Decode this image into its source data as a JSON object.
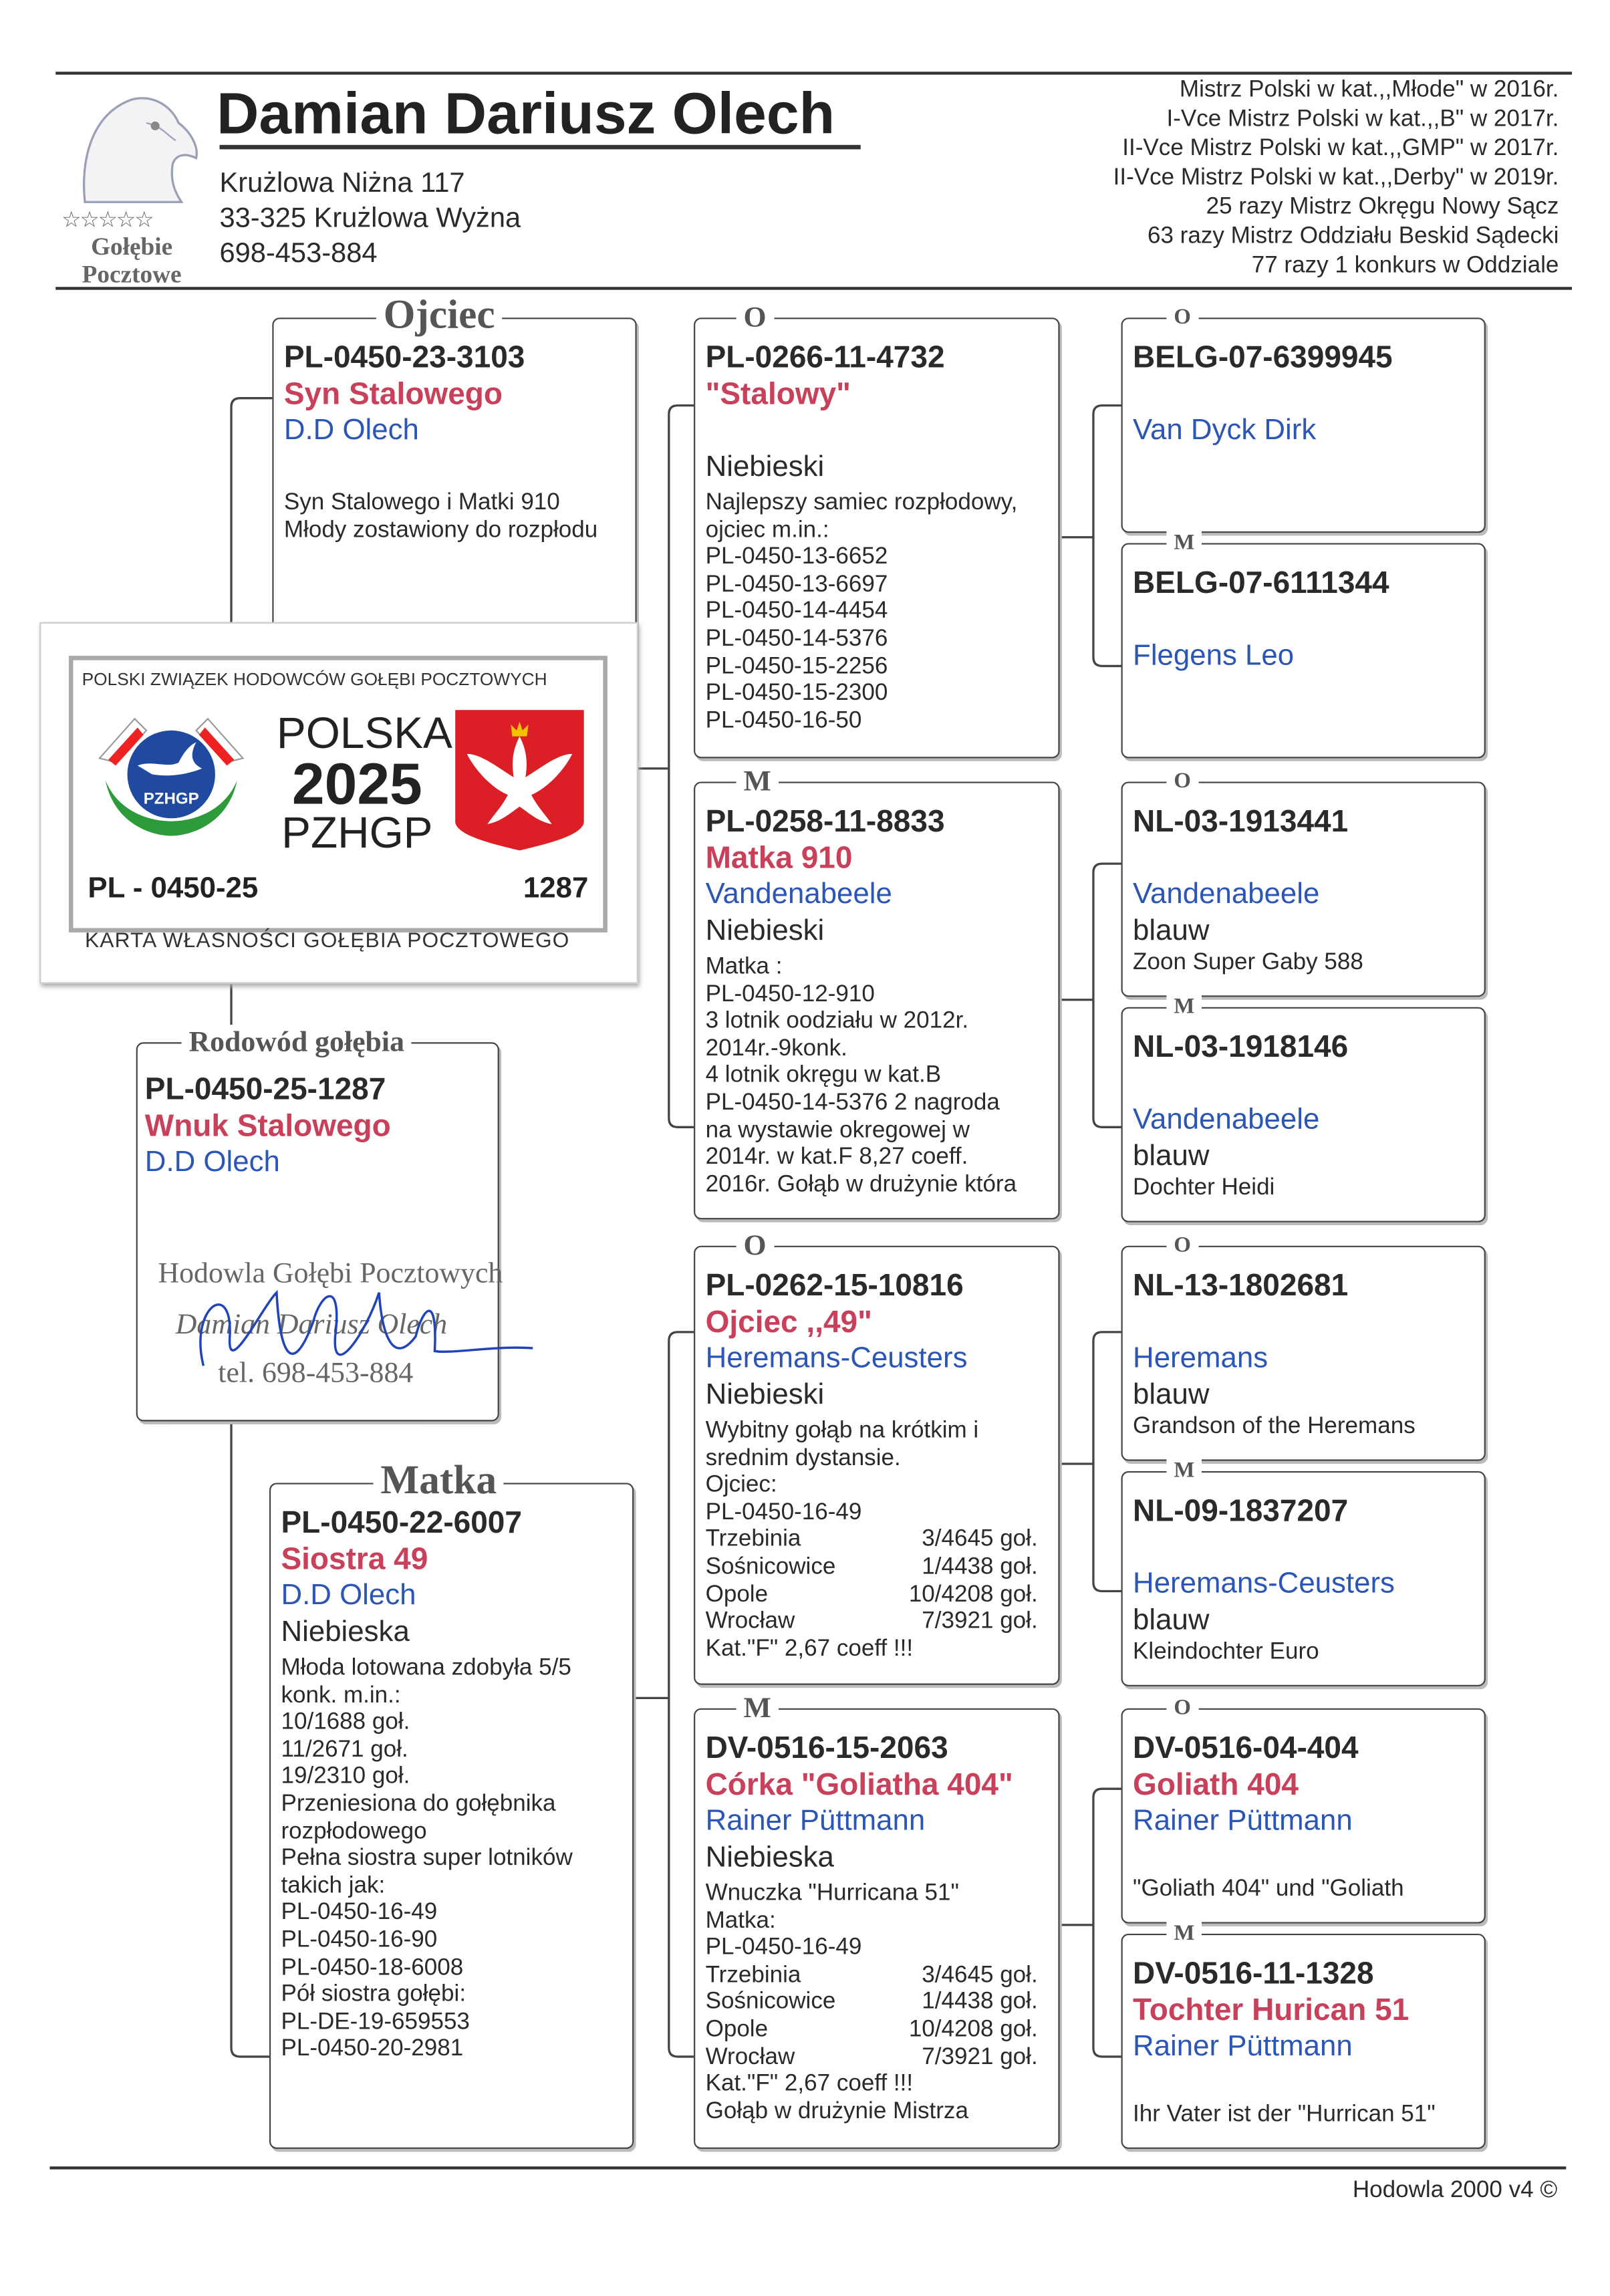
{
  "header": {
    "logo_text": [
      "Gołębie",
      "Pocztowe"
    ],
    "breeder_name": "Damian Dariusz Olech",
    "address_lines": [
      "Krużlowa Niżna 117",
      "33-325 Krużlowa Wyżna",
      "698-453-884"
    ],
    "achievements": [
      "Mistrz Polski w kat.,,Młode\" w 2016r.",
      "I-Vce Mistrz Polski w kat.,,B\" w 2017r.",
      "II-Vce Mistrz Polski w kat.,,GMP\" w 2017r.",
      "II-Vce Mistrz Polski w kat.,,Derby\" w 2019r.",
      "25 razy Mistrz Okręgu Nowy Sącz",
      "63 razy Mistrz Oddziału Beskid Sądecki",
      "77 razy 1 konkurs w Oddziale"
    ]
  },
  "card": {
    "org": "POLSKI ZWIĄZEK HODOWCÓW GOŁĘBI POCZTOWYCH",
    "logo_text": "PZHGP",
    "line1": "POLSKA",
    "year": "2025",
    "line3": "PZHGP",
    "ring_prefix": "PL - 0450-25",
    "ring_number": "1287",
    "footer": "KARTA  WŁASNOŚCI GOŁĘBIA POCZTOWEGO"
  },
  "pedigree": {
    "subject": {
      "label": "Rodowód gołębia",
      "ring": "PL-0450-25-1287",
      "name": "Wnuk Stalowego",
      "breeder": "D.D Olech",
      "stamp": [
        "Hodowla Gołębi Pocztowych",
        "Damian Dariusz Olech",
        "tel. 698-453-884"
      ]
    },
    "father": {
      "label": "Ojciec",
      "ring": "PL-0450-23-3103",
      "name": "Syn Stalowego",
      "breeder": "D.D Olech",
      "color": "",
      "notes": [
        "Syn Stalowego i Matki 910",
        "Młody zostawiony do rozpłodu"
      ]
    },
    "mother": {
      "label": "Matka",
      "ring": "PL-0450-22-6007",
      "name": "Siostra 49",
      "breeder": "D.D Olech",
      "color": "Niebieska",
      "notes": [
        "Młoda lotowana zdobyła 5/5",
        "konk. m.in.:",
        "10/1688 goł.",
        "11/2671 goł.",
        "19/2310 goł.",
        "Przeniesiona do gołębnika",
        "rozpłodowego",
        "Pełna siostra super lotników",
        "takich jak:",
        "PL-0450-16-49",
        "PL-0450-16-90",
        "PL-0450-18-6008",
        "Pół siostra gołębi:",
        "PL-DE-19-659553",
        "PL-0450-20-2981"
      ]
    },
    "gen2": [
      {
        "label": "O",
        "ring": "PL-0266-11-4732",
        "name": "\"Stalowy\"",
        "breeder": "",
        "color": "Niebieski",
        "notes": [
          "Najlepszy samiec rozpłodowy,",
          "ojciec m.in.:",
          "PL-0450-13-6652",
          "PL-0450-13-6697",
          "PL-0450-14-4454",
          "PL-0450-14-5376",
          "PL-0450-15-2256",
          "PL-0450-15-2300",
          "PL-0450-16-50"
        ]
      },
      {
        "label": "M",
        "ring": "PL-0258-11-8833",
        "name": "Matka 910",
        "breeder": "Vandenabeele",
        "color": "Niebieski",
        "notes": [
          "Matka :",
          "PL-0450-12-910",
          "3 lotnik oodziału w 2012r.",
          "2014r.-9konk.",
          "4 lotnik okręgu w kat.B",
          "PL-0450-14-5376 2 nagroda",
          "na wystawie okregowej w",
          "2014r. w kat.F   8,27 coeff.",
          "2016r. Gołąb w drużynie która"
        ]
      },
      {
        "label": "O",
        "ring": "PL-0262-15-10816",
        "name": "Ojciec ,,49\"",
        "breeder": "Heremans-Ceusters",
        "color": "Niebieski",
        "notes": [
          "Wybitny gołąb na krótkim i",
          "srednim dystansie.",
          "Ojciec:",
          "PL-0450-16-49",
          {
            "left": "Trzebinia",
            "right": "3/4645 goł."
          },
          {
            "left": "Sośnicowice",
            "right": "1/4438 goł."
          },
          {
            "left": "Opole",
            "right": "10/4208 goł."
          },
          {
            "left": "Wrocław",
            "right": "7/3921 goł."
          },
          "Kat.\"F\" 2,67 coeff !!!"
        ]
      },
      {
        "label": "M",
        "ring": "DV-0516-15-2063",
        "name": "Córka \"Goliatha 404\"",
        "breeder": "Rainer Püttmann",
        "color": "Niebieska",
        "notes": [
          "Wnuczka \"Hurricana 51\"",
          "Matka:",
          "PL-0450-16-49",
          {
            "left": "Trzebinia",
            "right": "3/4645 goł."
          },
          {
            "left": "Sośnicowice",
            "right": "1/4438 goł."
          },
          {
            "left": "Opole",
            "right": "10/4208 goł."
          },
          {
            "left": "Wrocław",
            "right": "7/3921 goł."
          },
          "Kat.\"F\" 2,67 coeff !!!",
          "Gołąb w drużynie Mistrza"
        ]
      }
    ],
    "gen3": [
      {
        "label": "O",
        "ring": "BELG-07-6399945",
        "name": "",
        "breeder": "Van Dyck Dirk",
        "color": "",
        "notes": []
      },
      {
        "label": "M",
        "ring": "BELG-07-6111344",
        "name": "",
        "breeder": "Flegens Leo",
        "color": "",
        "notes": []
      },
      {
        "label": "O",
        "ring": "NL-03-1913441",
        "name": "",
        "breeder": "Vandenabeele",
        "color": "blauw",
        "notes": [
          "Zoon Super Gaby 588"
        ]
      },
      {
        "label": "M",
        "ring": "NL-03-1918146",
        "name": "",
        "breeder": "Vandenabeele",
        "color": "blauw",
        "notes": [
          "Dochter Heidi"
        ]
      },
      {
        "label": "O",
        "ring": "NL-13-1802681",
        "name": "",
        "breeder": "Heremans",
        "color": "blauw",
        "notes": [
          "Grandson of the Heremans"
        ]
      },
      {
        "label": "M",
        "ring": "NL-09-1837207",
        "name": "",
        "breeder": "Heremans-Ceusters",
        "color": "blauw",
        "notes": [
          "Kleindochter Euro"
        ]
      },
      {
        "label": "O",
        "ring": "DV-0516-04-404",
        "name": "Goliath 404",
        "breeder": "Rainer Püttmann",
        "color": "",
        "notes": [
          "\"Goliath 404\" und \"Goliath"
        ]
      },
      {
        "label": "M",
        "ring": "DV-0516-11-1328",
        "name": "Tochter Hurican 51",
        "breeder": "Rainer Püttmann",
        "color": "",
        "notes": [
          "Ihr Vater ist der \"Hurrican 51\""
        ]
      }
    ]
  },
  "footer": {
    "software": "Hodowla 2000 v4 ©"
  }
}
